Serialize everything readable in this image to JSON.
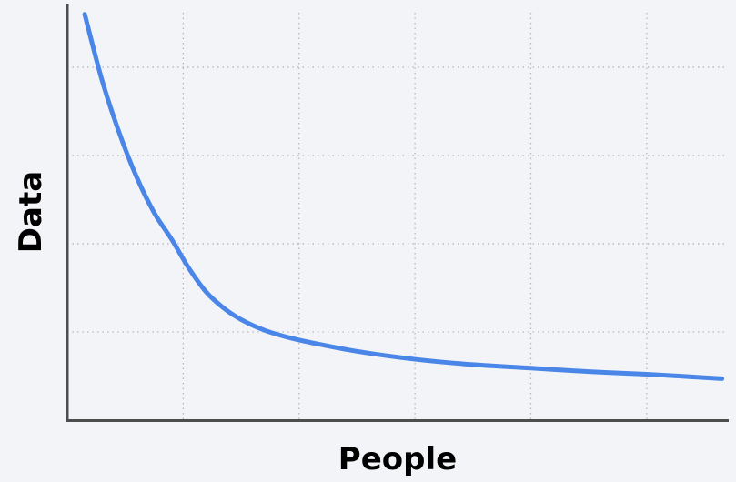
{
  "chart_data": {
    "type": "line",
    "xlabel": "People",
    "ylabel": "Data",
    "grid": true,
    "legend": "none",
    "x_tick_labels": [],
    "y_tick_labels": [],
    "xlim": [
      0,
      5.7
    ],
    "ylim": [
      0,
      4.7
    ],
    "x_gridlines": [
      1,
      2,
      3,
      4,
      5
    ],
    "y_gridlines": [
      1,
      2,
      3,
      4
    ],
    "series": [
      {
        "color": "#4a86e8",
        "x": [
          0.15,
          0.3,
          0.45,
          0.6,
          0.75,
          0.9,
          1.05,
          1.2,
          1.35,
          1.5,
          1.7,
          1.9,
          2.1,
          2.5,
          3.0,
          3.5,
          4.0,
          4.5,
          5.0,
          5.65
        ],
        "y": [
          4.6,
          3.85,
          3.25,
          2.75,
          2.35,
          2.05,
          1.72,
          1.45,
          1.27,
          1.14,
          1.02,
          0.94,
          0.88,
          0.78,
          0.69,
          0.63,
          0.59,
          0.55,
          0.52,
          0.47
        ]
      }
    ]
  }
}
